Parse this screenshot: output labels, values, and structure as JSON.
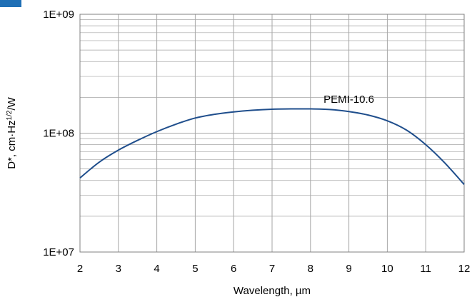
{
  "chart_data": {
    "type": "line",
    "title": "",
    "xlabel": "Wavelength, µm",
    "ylabel_parts": {
      "base": "D*, cm·Hz",
      "sup": "1/2",
      "tail": "/W"
    },
    "x_ticks": [
      "2",
      "3",
      "4",
      "5",
      "6",
      "7",
      "8",
      "9",
      "10",
      "11",
      "12"
    ],
    "y_ticks": [
      "1E+07",
      "1E+08",
      "1E+09"
    ],
    "xlim": [
      2,
      12
    ],
    "ylim": [
      10000000,
      1000000000
    ],
    "y_scale": "log",
    "grid": true,
    "colors": {
      "series": "#1f4e8c",
      "title": "#1f6fb5",
      "grid": "#a6a6a6",
      "axis": "#808080"
    },
    "series": [
      {
        "name": "PEMI-10.6",
        "x": [
          2,
          2.5,
          3,
          3.5,
          4,
          4.5,
          5,
          5.5,
          6,
          6.5,
          7,
          7.5,
          8,
          8.5,
          9,
          9.5,
          10,
          10.5,
          11,
          11.5,
          12
        ],
        "y": [
          42000000,
          57000000,
          72000000,
          87000000,
          103000000,
          119000000,
          134000000,
          144000000,
          151000000,
          156000000,
          159000000,
          160000000,
          160000000,
          158000000,
          152000000,
          142000000,
          127000000,
          106000000,
          80000000,
          56000000,
          37000000
        ]
      }
    ]
  }
}
